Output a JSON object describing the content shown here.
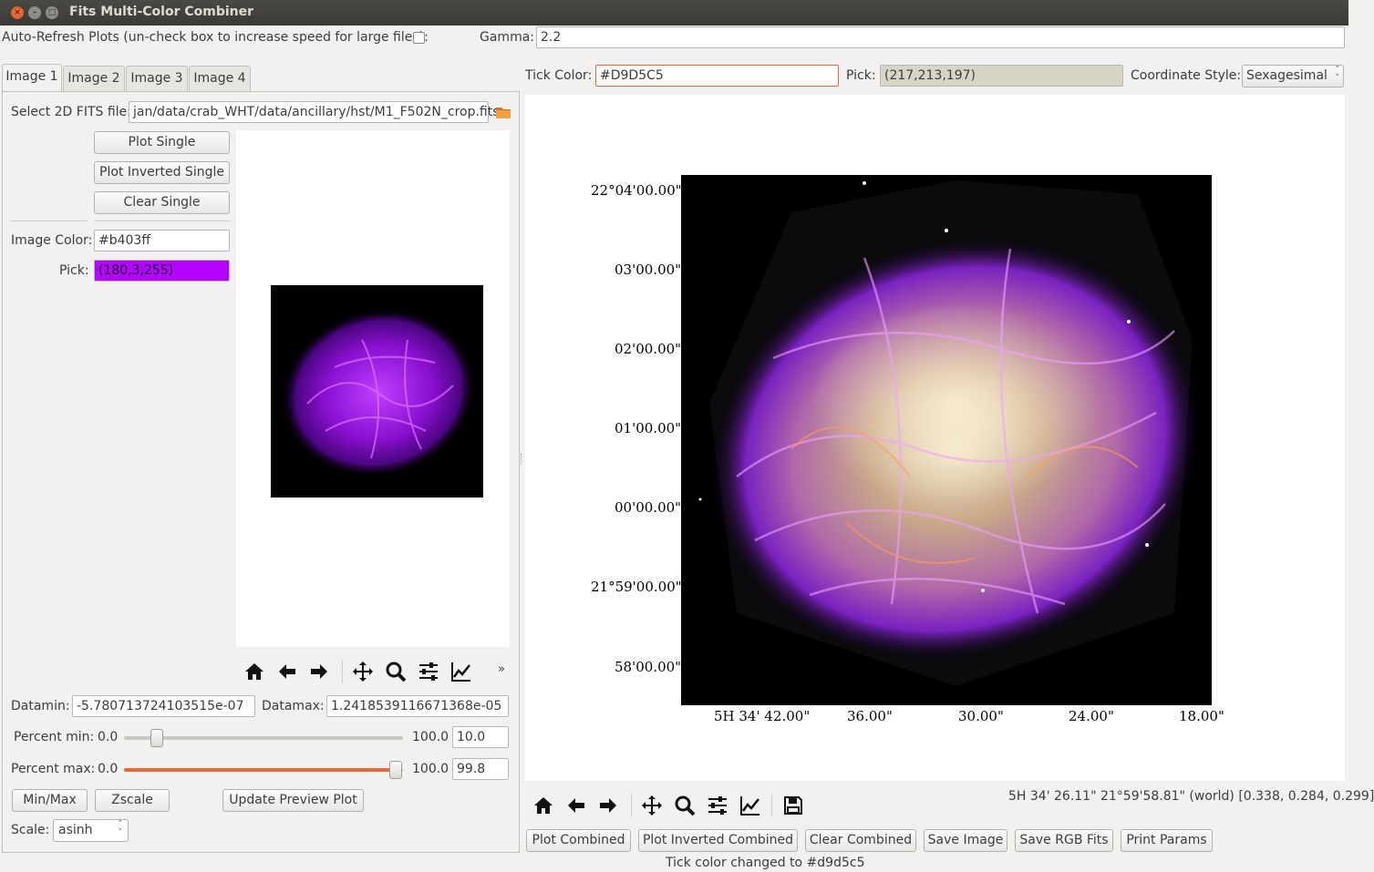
{
  "window": {
    "title": "Fits Multi-Color Combiner"
  },
  "top": {
    "auto_refresh_label": "Auto-Refresh Plots (un-check box to increase speed for large files):",
    "auto_refresh_checked": false,
    "gamma_label": "Gamma:",
    "gamma_value": "2.2"
  },
  "tabs": [
    "Image 1",
    "Image 2",
    "Image 3",
    "Image 4"
  ],
  "left": {
    "select_label": "Select 2D FITS file:",
    "file_path": "jan/data/crab_WHT/data/ancillary/hst/M1_F502N_crop.fits",
    "plot_single": "Plot Single",
    "plot_inverted_single": "Plot Inverted Single",
    "clear_single": "Clear Single",
    "image_color_label": "Image Color:",
    "image_color_value": "#b403ff",
    "pick_label": "Pick:",
    "pick_value": "(180,3,255)",
    "pick_color": "#b403ff",
    "datamin_label": "Datamin:",
    "datamin_value": "-5.780713724103515e-07",
    "datamax_label": "Datamax:",
    "datamax_value": "1.2418539116671368e-05",
    "percent_min_label": "Percent min:",
    "percent_min_low": "0.0",
    "percent_min_high": "100.0",
    "percent_min_value": "10.0",
    "percent_min_fraction": 0.1,
    "percent_max_label": "Percent max:",
    "percent_max_low": "0.0",
    "percent_max_high": "100.0",
    "percent_max_value": "99.8",
    "percent_max_fraction": 0.998,
    "minmax_button": "Min/Max",
    "zscale_button": "Zscale",
    "update_preview_button": "Update Preview Plot",
    "scale_label": "Scale:",
    "scale_value": "asinh"
  },
  "right": {
    "tick_color_label": "Tick Color:",
    "tick_color_value": "#D9D5C5",
    "pick_label": "Pick:",
    "pick_value": "(217,213,197)",
    "pick_color": "#d9d5c5",
    "coord_style_label": "Coordinate Style:",
    "coord_style_value": "Sexagesimal",
    "y_ticks": [
      "22°04'00.00\"",
      "03'00.00\"",
      "02'00.00\"",
      "01'00.00\"",
      "00'00.00\"",
      "21°59'00.00\"",
      "58'00.00\""
    ],
    "x_ticks": [
      "5H 34' 42.00\"",
      "36.00\"",
      "30.00\"",
      "24.00\"",
      "18.00\""
    ],
    "coord_readout": "5H 34' 26.11\"  21°59'58.81\" (world) [0.338, 0.284, 0.299]",
    "buttons": [
      "Plot Combined",
      "Plot Inverted Combined",
      "Clear Combined",
      "Save Image",
      "Save RGB Fits",
      "Print Params"
    ]
  },
  "status": "Tick color changed to #d9d5c5",
  "icons": {
    "toolbar": [
      "home-icon",
      "back-arrow-icon",
      "forward-arrow-icon",
      "pan-icon",
      "zoom-icon",
      "configure-subplots-icon",
      "edit-axis-icon"
    ],
    "folder": "folder-icon",
    "save": "save-icon"
  }
}
